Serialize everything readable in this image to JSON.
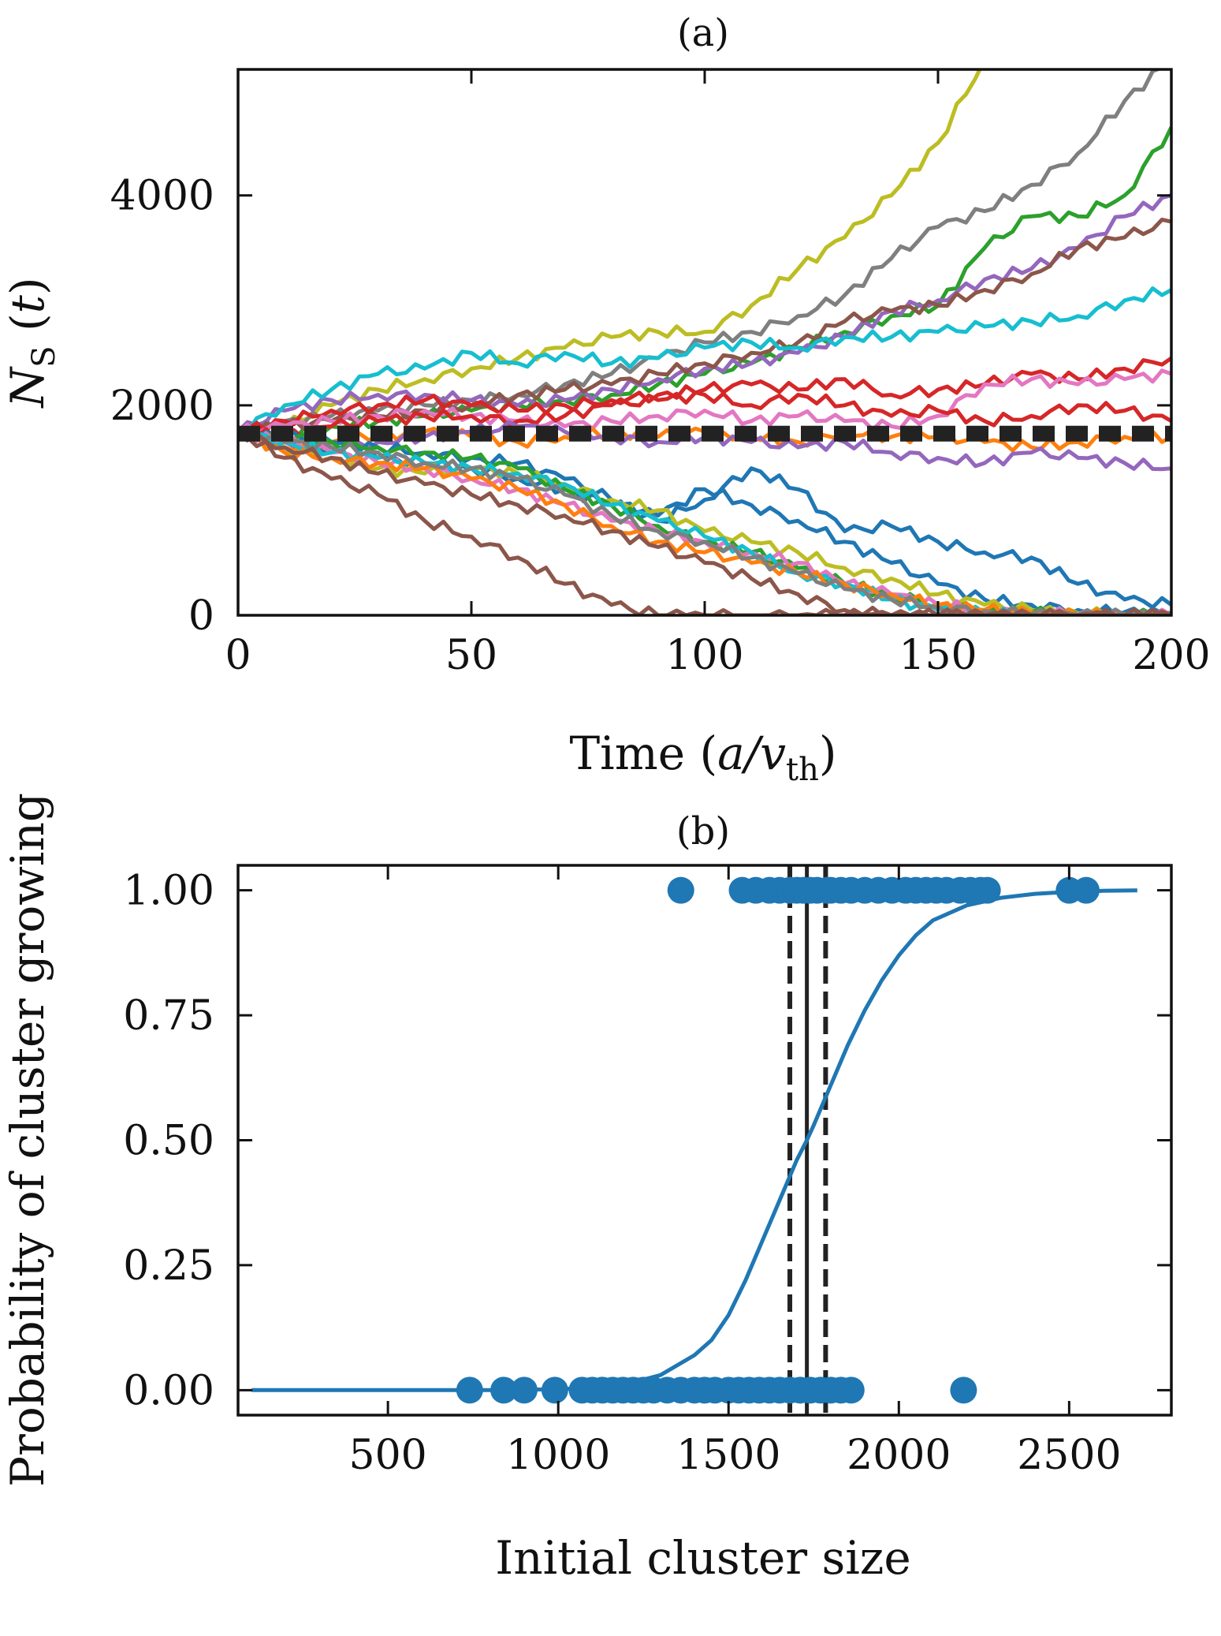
{
  "figure": {
    "panels": [
      {
        "id": "a",
        "chart_data": {
          "type": "line",
          "title": "(a)",
          "xlabel": "Time (a/v_th)",
          "xlabel_parts": {
            "base": "Time (",
            "italic": "a/v",
            "sub": "th",
            "close": ")"
          },
          "ylabel": "N_S (t)",
          "ylabel_parts": {
            "italic": "N",
            "sub": "S",
            "rest": " (",
            "italic2": "t",
            "close": ")"
          },
          "xlim": [
            0,
            200
          ],
          "ylim": [
            0,
            5200
          ],
          "xticks": [
            0,
            50,
            100,
            150,
            200
          ],
          "yticks": [
            0,
            2000,
            4000
          ],
          "grid": false,
          "x": [
            0,
            10,
            20,
            30,
            40,
            50,
            60,
            70,
            80,
            90,
            100,
            110,
            120,
            130,
            140,
            150,
            160,
            170,
            180,
            190,
            200
          ],
          "series": [
            {
              "color": "#bcbd22",
              "values": [
                1750,
                1800,
                2000,
                2150,
                2250,
                2350,
                2450,
                2550,
                2650,
                2700,
                2700,
                2950,
                3300,
                3600,
                4000,
                4500,
                5300,
                5300,
                5300,
                5300,
                5300
              ]
            },
            {
              "color": "#7f7f7f",
              "values": [
                1750,
                1850,
                1900,
                1950,
                2000,
                2050,
                2100,
                2200,
                2300,
                2450,
                2600,
                2700,
                2850,
                3050,
                3400,
                3700,
                3850,
                4100,
                4400,
                4900,
                5300
              ]
            },
            {
              "color": "#2ca02c",
              "values": [
                1750,
                1700,
                1800,
                1850,
                1900,
                1950,
                2000,
                2050,
                2100,
                2200,
                2300,
                2400,
                2550,
                2700,
                2850,
                2950,
                3500,
                3800,
                3800,
                4000,
                4650
              ]
            },
            {
              "color": "#9467bd",
              "values": [
                1750,
                1950,
                2050,
                2100,
                2100,
                2050,
                2000,
                2050,
                2150,
                2250,
                2350,
                2400,
                2500,
                2650,
                2900,
                3000,
                3200,
                3300,
                3500,
                3800,
                4000
              ]
            },
            {
              "color": "#8c564b",
              "values": [
                1750,
                1800,
                1850,
                1900,
                1950,
                2000,
                2100,
                2150,
                2200,
                2300,
                2400,
                2500,
                2600,
                2800,
                2900,
                2950,
                3100,
                3250,
                3500,
                3600,
                3750
              ]
            },
            {
              "color": "#17becf",
              "values": [
                1750,
                2000,
                2150,
                2300,
                2350,
                2500,
                2400,
                2500,
                2400,
                2450,
                2550,
                2600,
                2550,
                2650,
                2650,
                2700,
                2750,
                2800,
                2850,
                3000,
                3100
              ]
            },
            {
              "color": "#d62728",
              "values": [
                1750,
                1850,
                1950,
                2000,
                2050,
                2000,
                1950,
                2000,
                2050,
                2100,
                2150,
                2200,
                2150,
                2250,
                2100,
                2150,
                2200,
                2300,
                2250,
                2350,
                2450
              ]
            },
            {
              "color": "#e377c2",
              "values": [
                1750,
                1800,
                1850,
                1900,
                1950,
                1900,
                1850,
                1800,
                1850,
                1900,
                1950,
                1850,
                1900,
                1850,
                1800,
                1900,
                2200,
                2250,
                2200,
                2250,
                2300
              ]
            },
            {
              "color": "#d62728",
              "values": [
                1750,
                1700,
                1800,
                1850,
                1900,
                1900,
                1850,
                1900,
                2000,
                2050,
                2100,
                2000,
                2100,
                2000,
                1900,
                1950,
                1850,
                1900,
                2000,
                1950,
                1850
              ]
            },
            {
              "color": "#ff7f0e",
              "values": [
                1750,
                1600,
                1650,
                1700,
                1750,
                1700,
                1650,
                1700,
                1750,
                1700,
                1750,
                1700,
                1650,
                1750,
                1700,
                1700,
                1650,
                1600,
                1650,
                1700,
                1700
              ]
            },
            {
              "color": "#9467bd",
              "values": [
                1750,
                1650,
                1600,
                1650,
                1700,
                1750,
                1800,
                1750,
                1700,
                1650,
                1700,
                1650,
                1600,
                1650,
                1550,
                1500,
                1450,
                1550,
                1500,
                1450,
                1400
              ]
            },
            {
              "color": "#1f77b4",
              "values": [
                1750,
                1700,
                1650,
                1600,
                1550,
                1500,
                1450,
                1300,
                1100,
                900,
                1100,
                1400,
                1200,
                800,
                850,
                700,
                600,
                550,
                300,
                150,
                100
              ]
            },
            {
              "color": "#1f77b4",
              "values": [
                1750,
                1650,
                1550,
                1500,
                1450,
                1400,
                1300,
                1200,
                1050,
                950,
                1200,
                1050,
                900,
                700,
                500,
                300,
                150,
                100,
                50,
                30,
                20
              ]
            },
            {
              "color": "#bcbd22",
              "values": [
                1750,
                1600,
                1500,
                1400,
                1350,
                1400,
                1350,
                1250,
                1100,
                1000,
                800,
                700,
                600,
                450,
                350,
                200,
                100,
                50,
                20,
                10,
                0
              ]
            },
            {
              "color": "#2ca02c",
              "values": [
                1750,
                1700,
                1650,
                1600,
                1550,
                1500,
                1400,
                1200,
                1050,
                850,
                700,
                600,
                450,
                300,
                200,
                100,
                50,
                20,
                10,
                0,
                0
              ]
            },
            {
              "color": "#e377c2",
              "values": [
                1750,
                1650,
                1550,
                1450,
                1400,
                1300,
                1200,
                1050,
                900,
                800,
                700,
                600,
                500,
                300,
                200,
                100,
                50,
                20,
                10,
                0,
                0
              ]
            },
            {
              "color": "#17becf",
              "values": [
                1750,
                1650,
                1550,
                1500,
                1450,
                1400,
                1350,
                1250,
                1050,
                900,
                750,
                600,
                400,
                300,
                150,
                50,
                20,
                10,
                0,
                0,
                0
              ]
            },
            {
              "color": "#ff7f0e",
              "values": [
                1750,
                1550,
                1500,
                1450,
                1400,
                1300,
                1200,
                1050,
                850,
                700,
                600,
                500,
                400,
                300,
                200,
                100,
                50,
                20,
                0,
                0,
                0
              ]
            },
            {
              "color": "#7f7f7f",
              "values": [
                1750,
                1650,
                1600,
                1550,
                1450,
                1400,
                1300,
                1150,
                950,
                800,
                700,
                550,
                400,
                250,
                150,
                80,
                40,
                10,
                0,
                0,
                0
              ]
            },
            {
              "color": "#8c564b",
              "values": [
                1750,
                1500,
                1300,
                1150,
                900,
                750,
                550,
                300,
                100,
                0,
                0,
                0,
                0,
                0,
                0,
                0,
                0,
                0,
                0,
                0,
                0
              ]
            },
            {
              "color": "#8c564b",
              "values": [
                1750,
                1600,
                1500,
                1350,
                1250,
                1150,
                1050,
                950,
                800,
                650,
                500,
                350,
                200,
                50,
                0,
                0,
                0,
                0,
                0,
                0,
                0
              ]
            }
          ],
          "reference_line": {
            "y": 1730,
            "style": "dashed",
            "color": "#222222"
          }
        }
      },
      {
        "id": "b",
        "chart_data": {
          "type": "scatter",
          "title": "(b)",
          "xlabel": "Initial cluster size",
          "ylabel": "Probability of cluster growing",
          "xlim": [
            60,
            2800
          ],
          "ylim": [
            -0.05,
            1.05
          ],
          "xticks": [
            500,
            1000,
            1500,
            2000,
            2500
          ],
          "yticks": [
            0.0,
            0.25,
            0.5,
            0.75,
            1.0
          ],
          "ytick_labels": [
            "0.00",
            "0.25",
            "0.50",
            "0.75",
            "1.00"
          ],
          "grid": false,
          "points": {
            "color": "#1f77b4",
            "x_growing": [
              1360,
              1540,
              1580,
              1620,
              1650,
              1680,
              1700,
              1720,
              1740,
              1760,
              1790,
              1800,
              1830,
              1860,
              1900,
              1940,
              1980,
              2020,
              2050,
              2080,
              2110,
              2140,
              2180,
              2210,
              2240,
              2260,
              2500,
              2550
            ],
            "y_growing": 1.0,
            "x_shrinking": [
              740,
              840,
              900,
              990,
              1070,
              1100,
              1130,
              1160,
              1190,
              1220,
              1250,
              1280,
              1320,
              1360,
              1400,
              1430,
              1460,
              1500,
              1530,
              1560,
              1590,
              1620,
              1650,
              1680,
              1710,
              1740,
              1770,
              1800,
              1830,
              1860,
              2190
            ],
            "y_shrinking": 0.0
          },
          "fit": {
            "color": "#1f77b4",
            "x": [
              100,
              200,
              300,
              400,
              500,
              600,
              700,
              800,
              900,
              1000,
              1100,
              1200,
              1300,
              1400,
              1450,
              1500,
              1550,
              1600,
              1650,
              1700,
              1730,
              1750,
              1800,
              1850,
              1900,
              1950,
              2000,
              2050,
              2100,
              2200,
              2300,
              2400,
              2500,
              2600,
              2700
            ],
            "y": [
              0.0,
              0.0,
              0.0,
              0.0,
              0.0,
              0.0,
              0.0,
              0.0,
              0.001,
              0.002,
              0.005,
              0.012,
              0.03,
              0.07,
              0.1,
              0.15,
              0.22,
              0.3,
              0.38,
              0.46,
              0.5,
              0.53,
              0.61,
              0.69,
              0.76,
              0.82,
              0.87,
              0.91,
              0.94,
              0.97,
              0.985,
              0.993,
              0.997,
              0.999,
              1.0
            ]
          },
          "vlines": [
            {
              "x": 1730,
              "style": "solid",
              "color": "#222222"
            },
            {
              "x": 1680,
              "style": "dashed",
              "color": "#222222"
            },
            {
              "x": 1785,
              "style": "dashed",
              "color": "#222222"
            }
          ]
        }
      }
    ]
  }
}
